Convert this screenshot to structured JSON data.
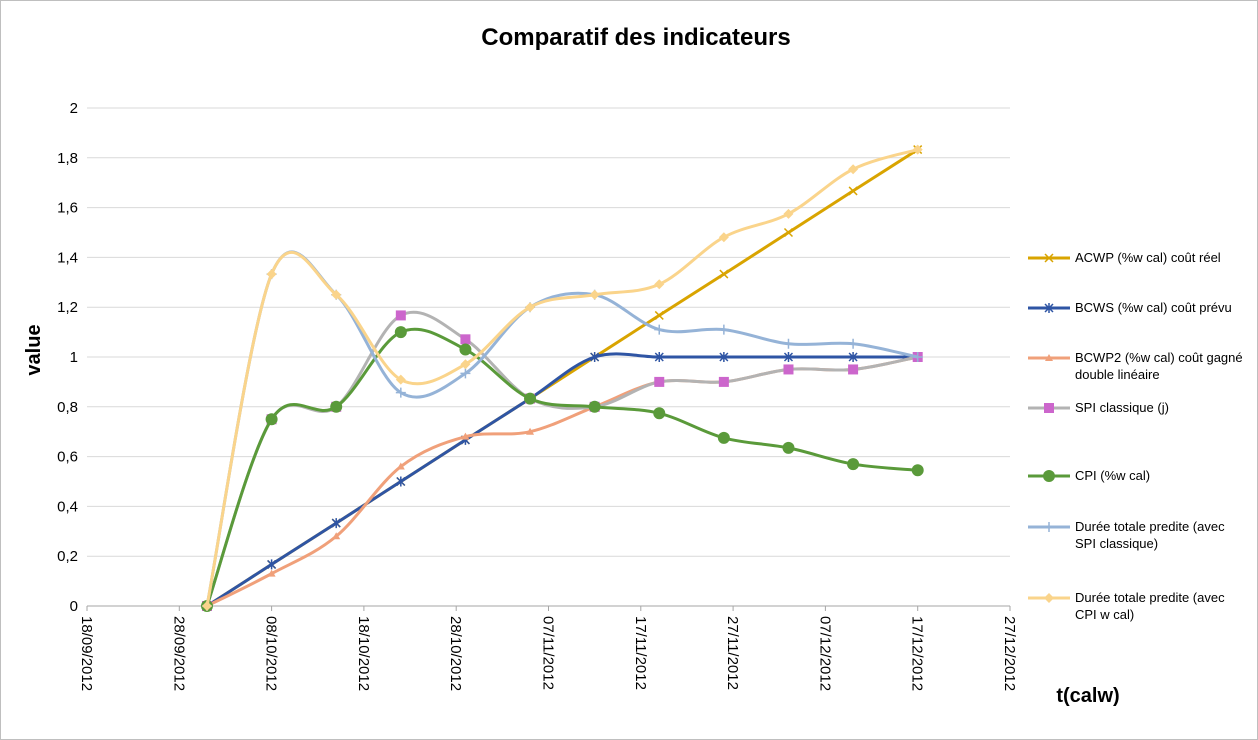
{
  "chart_data": {
    "type": "line",
    "title": "Comparatif des indicateurs",
    "xlabel": "t(calw)",
    "ylabel": "value",
    "smooth": true,
    "grid": true,
    "legend": "right",
    "x": [
      "01/10/2012",
      "08/10/2012",
      "15/10/2012",
      "22/10/2012",
      "29/10/2012",
      "05/11/2012",
      "12/11/2012",
      "19/11/2012",
      "26/11/2012",
      "03/12/2012",
      "10/12/2012",
      "17/12/2012"
    ],
    "xlim": [
      "18/09/2012",
      "27/12/2012"
    ],
    "xticks": [
      "18/09/2012",
      "28/09/2012",
      "08/10/2012",
      "18/10/2012",
      "28/10/2012",
      "07/11/2012",
      "17/11/2012",
      "27/11/2012",
      "07/12/2012",
      "17/12/2012",
      "27/12/2012"
    ],
    "ylim": [
      0,
      2
    ],
    "yticks": [
      0,
      {
        "value": 0.2,
        "label": "0,2"
      },
      {
        "value": 0.4,
        "label": "0,4"
      },
      {
        "value": 0.6,
        "label": "0,6"
      },
      {
        "value": 0.8,
        "label": "0,8"
      },
      1,
      {
        "value": 1.2,
        "label": "1,2"
      },
      {
        "value": 1.4,
        "label": "1,4"
      },
      {
        "value": 1.6,
        "label": "1,6"
      },
      {
        "value": 1.8,
        "label": "1,8"
      },
      2
    ],
    "series": [
      {
        "name": "ACWP  (%w cal) coût réel",
        "color": "#d9a400",
        "marker": "x",
        "values": [
          0,
          0.167,
          0.333,
          0.5,
          0.667,
          0.833,
          1.0,
          1.167,
          1.333,
          1.5,
          1.667,
          1.833
        ]
      },
      {
        "name": "BCWS  (%w cal) coût prévu",
        "color": "#2f55a4",
        "marker": "star",
        "values": [
          0,
          0.167,
          0.333,
          0.5,
          0.667,
          0.833,
          1,
          1,
          1,
          1,
          1,
          1
        ]
      },
      {
        "name": "BCWP2  (%w cal) coût gagné double linéaire",
        "color": "#f0a07a",
        "marker": "triangle",
        "values": [
          0,
          0.13,
          0.28,
          0.56,
          0.68,
          0.7,
          0.8,
          0.9,
          0.9,
          0.95,
          0.95,
          1.0
        ]
      },
      {
        "name": "SPI classique (j)",
        "color": "#b3b3b3",
        "marker_color": "#cc66cc",
        "marker": "square",
        "values": [
          0,
          0.75,
          0.8,
          1.167,
          1.071,
          0.833,
          0.8,
          0.9,
          0.9,
          0.95,
          0.95,
          1.0
        ]
      },
      {
        "name": "CPI (%w cal)",
        "color": "#5a9a3a",
        "marker": "circle",
        "values": [
          0,
          0.75,
          0.8,
          1.1,
          1.03,
          0.833,
          0.8,
          0.774,
          0.675,
          0.635,
          0.57,
          0.545
        ]
      },
      {
        "name": "Durée totale predite (avec SPI classique)",
        "color": "#95b3d7",
        "marker": "plus",
        "values": [
          0,
          1.333,
          1.25,
          0.857,
          0.934,
          1.2,
          1.25,
          1.11,
          1.11,
          1.053,
          1.053,
          1.0
        ]
      },
      {
        "name": "Durée totale predite (avec CPI w cal)",
        "color": "#fad48b",
        "marker": "diamond",
        "values": [
          0,
          1.333,
          1.25,
          0.909,
          0.971,
          1.2,
          1.25,
          1.292,
          1.481,
          1.575,
          1.754,
          1.833
        ]
      }
    ]
  }
}
